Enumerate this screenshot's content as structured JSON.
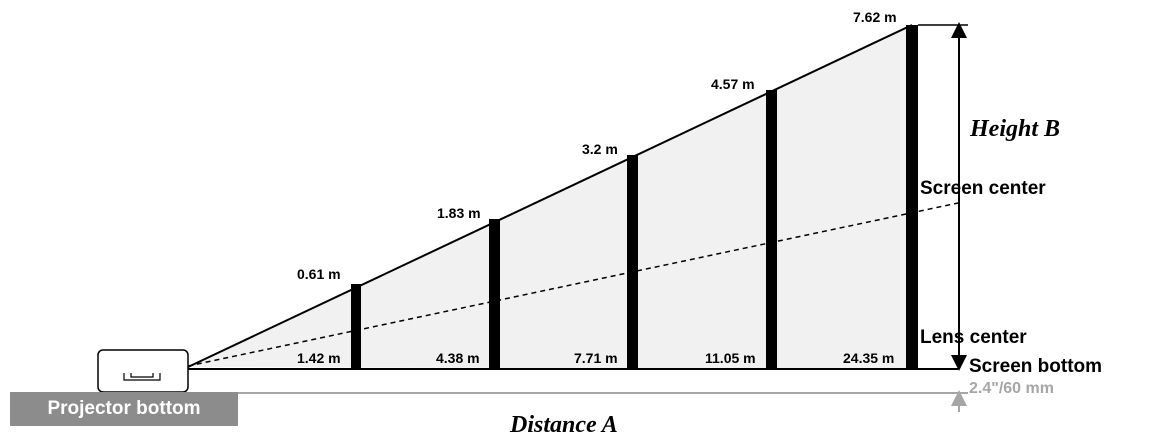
{
  "labels": {
    "screen_center": "Screen center",
    "lens_center": "Lens center",
    "screen_bottom": "Screen bottom",
    "offset": "2.4\"/60 mm",
    "projector_bottom": "Projector bottom",
    "distance_prefix": "Distance ",
    "distance_letter": "A",
    "height_prefix": "Height ",
    "height_letter": "B"
  },
  "screens": [
    {
      "height": "0.61 m",
      "distance": "1.42 m"
    },
    {
      "height": "1.83 m",
      "distance": "4.38 m"
    },
    {
      "height": "3.2 m",
      "distance": "7.71 m"
    },
    {
      "height": "4.57 m",
      "distance": "11.05 m"
    },
    {
      "height": "7.62 m",
      "distance": "24.35 m"
    }
  ]
}
